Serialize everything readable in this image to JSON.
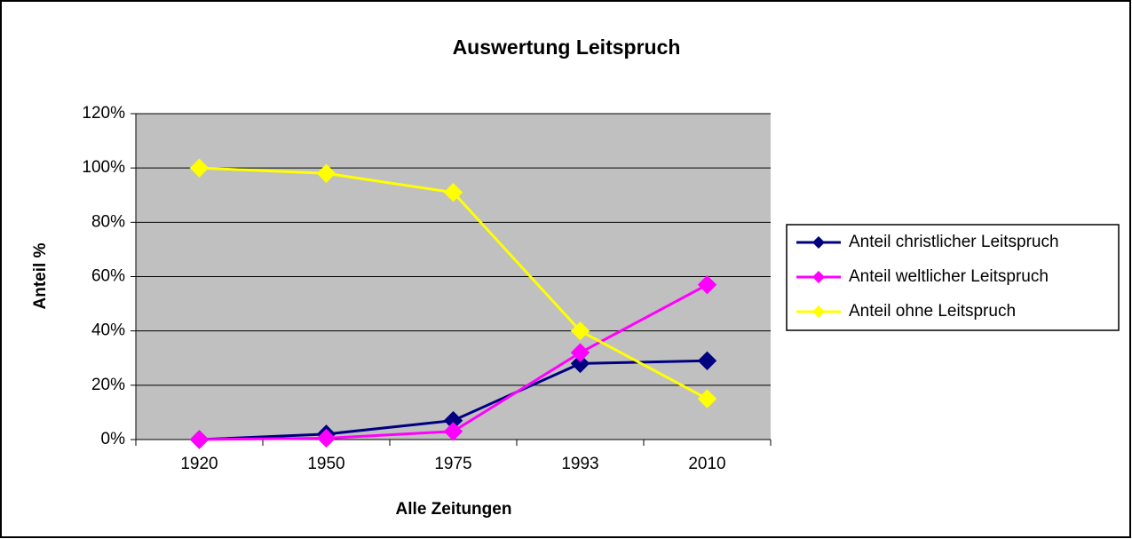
{
  "chart_data": {
    "type": "line",
    "title": "Auswertung Leitspruch",
    "x_label": "Alle Zeitungen",
    "y_label": "Anteil %",
    "categories": [
      "1920",
      "1950",
      "1975",
      "1993",
      "2010"
    ],
    "series": [
      {
        "name": "Anteil christlicher Leitspruch",
        "color": "#000080",
        "values": [
          0,
          2,
          7,
          28,
          29
        ]
      },
      {
        "name": "Anteil weltlicher Leitspruch",
        "color": "#ff00ff",
        "values": [
          0,
          0.5,
          3,
          32,
          57
        ]
      },
      {
        "name": "Anteil ohne Leitspruch",
        "color": "#ffff00",
        "values": [
          100,
          98,
          91,
          40,
          15
        ]
      }
    ],
    "ylim": [
      0,
      120
    ],
    "yticks": [
      {
        "value": 0,
        "label": "0%"
      },
      {
        "value": 20,
        "label": "20%"
      },
      {
        "value": 40,
        "label": "40%"
      },
      {
        "value": 60,
        "label": "60%"
      },
      {
        "value": 80,
        "label": "80%"
      },
      {
        "value": 100,
        "label": "100%"
      },
      {
        "value": 120,
        "label": "120%"
      }
    ],
    "grid": true,
    "legend": "right",
    "plot_background": "#c0c0c0"
  }
}
